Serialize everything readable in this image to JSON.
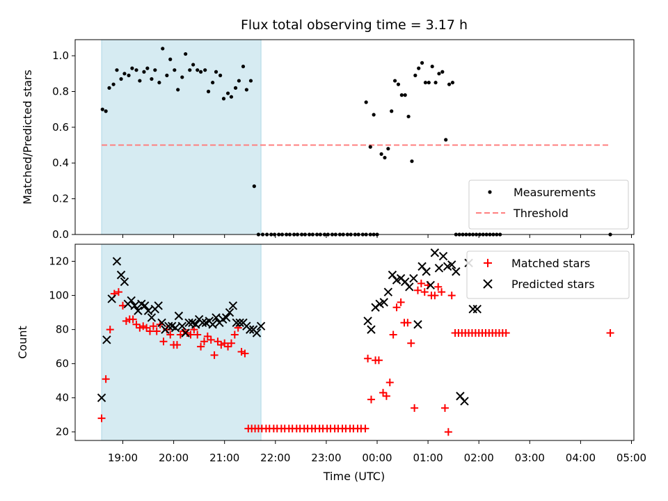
{
  "chart_data": {
    "type": "scatter",
    "title": "Flux total observing time = 3.17 h",
    "x_ticks": [
      "19:00",
      "20:00",
      "21:00",
      "22:00",
      "23:00",
      "00:00",
      "01:00",
      "02:00",
      "03:00",
      "04:00",
      "05:00"
    ],
    "xlabel": "Time (UTC)",
    "shaded_interval": [
      "18:35",
      "21:43"
    ],
    "panels": [
      {
        "ylabel": "Matched/Predicted stars",
        "ylim": [
          0,
          1.09
        ],
        "y_ticks": [
          "0.0",
          "0.2",
          "0.4",
          "0.6",
          "0.8",
          "1.0"
        ],
        "threshold": 0.5,
        "legend_position": "lower right",
        "legend": [
          "Measurements",
          "Threshold"
        ],
        "series": [
          {
            "name": "Measurements",
            "marker": "dot",
            "color": "#000000",
            "x": [
              "18:36",
              "18:40",
              "18:44",
              "18:49",
              "18:53",
              "18:58",
              "19:02",
              "19:07",
              "19:11",
              "19:16",
              "19:20",
              "19:25",
              "19:29",
              "19:34",
              "19:38",
              "19:43",
              "19:47",
              "19:52",
              "19:56",
              "20:01",
              "20:05",
              "20:10",
              "20:14",
              "20:19",
              "20:23",
              "20:28",
              "20:32",
              "20:37",
              "20:41",
              "20:46",
              "20:50",
              "20:55",
              "20:59",
              "21:04",
              "21:08",
              "21:13",
              "21:17",
              "21:22",
              "21:26",
              "21:31",
              "21:35",
              "21:40",
              "21:45",
              "21:50",
              "21:55",
              "21:59",
              "22:04",
              "22:08",
              "22:13",
              "22:17",
              "22:22",
              "22:26",
              "22:31",
              "22:35",
              "22:40",
              "22:44",
              "22:49",
              "22:53",
              "22:58",
              "23:02",
              "23:07",
              "23:11",
              "23:16",
              "23:20",
              "23:25",
              "23:29",
              "23:34",
              "23:38",
              "23:43",
              "23:47",
              "23:52",
              "23:56",
              "23:47",
              "23:52",
              "23:56",
              "00:00",
              "00:05",
              "00:09",
              "00:13",
              "00:17",
              "00:21",
              "00:25",
              "00:29",
              "00:33",
              "00:37",
              "00:41",
              "00:45",
              "00:49",
              "00:53",
              "00:57",
              "01:01",
              "01:05",
              "01:09",
              "01:13",
              "01:17",
              "01:21",
              "01:25",
              "01:29",
              "01:33",
              "01:37",
              "01:41",
              "01:45",
              "01:49",
              "01:53",
              "01:57",
              "02:01",
              "02:05",
              "02:09",
              "02:13",
              "02:17",
              "02:21",
              "02:25",
              "04:35"
            ],
            "y": [
              0.7,
              0.69,
              0.82,
              0.84,
              0.92,
              0.87,
              0.9,
              0.89,
              0.93,
              0.92,
              0.86,
              0.91,
              0.93,
              0.87,
              0.92,
              0.85,
              1.04,
              0.89,
              0.98,
              0.92,
              0.81,
              0.88,
              1.01,
              0.92,
              0.95,
              0.92,
              0.91,
              0.92,
              0.8,
              0.85,
              0.91,
              0.89,
              0.76,
              0.79,
              0.77,
              0.82,
              0.86,
              0.94,
              0.81,
              0.86,
              0.27,
              0.0,
              0.0,
              0.0,
              0.0,
              0.0,
              0.0,
              0.0,
              0.0,
              0.0,
              0.0,
              0.0,
              0.0,
              0.0,
              0.0,
              0.0,
              0.0,
              0.0,
              0.0,
              0.0,
              0.0,
              0.0,
              0.0,
              0.0,
              0.0,
              0.0,
              0.0,
              0.0,
              0.0,
              0.0,
              0.0,
              0.0,
              0.74,
              0.49,
              0.67,
              0.0,
              0.45,
              0.43,
              0.48,
              0.69,
              0.86,
              0.84,
              0.78,
              0.78,
              0.66,
              0.41,
              0.89,
              0.93,
              0.96,
              0.85,
              0.85,
              0.94,
              0.85,
              0.9,
              0.91,
              0.53,
              0.84,
              0.85,
              0.0,
              0.0,
              0.0,
              0.0,
              0.0,
              0.0,
              0.0,
              0.0,
              0.0,
              0.0,
              0.0,
              0.0,
              0.0,
              0.0,
              0.0
            ]
          }
        ]
      },
      {
        "ylabel": "Count",
        "ylim": [
          15,
          130
        ],
        "y_ticks": [
          "20",
          "40",
          "60",
          "80",
          "100",
          "120"
        ],
        "legend_position": "upper right",
        "legend": [
          "Matched stars",
          "Predicted stars"
        ],
        "series": [
          {
            "name": "Matched stars",
            "marker": "plus",
            "color": "#ff0000",
            "x": [
              "18:35",
              "18:40",
              "18:45",
              "18:50",
              "18:55",
              "19:00",
              "19:04",
              "19:08",
              "19:12",
              "19:16",
              "19:20",
              "19:24",
              "19:28",
              "19:32",
              "19:36",
              "19:40",
              "19:44",
              "19:48",
              "19:52",
              "19:56",
              "20:00",
              "20:04",
              "20:08",
              "20:12",
              "20:16",
              "20:20",
              "20:24",
              "20:28",
              "20:32",
              "20:36",
              "20:40",
              "20:44",
              "20:48",
              "20:52",
              "20:56",
              "21:00",
              "21:04",
              "21:08",
              "21:12",
              "21:16",
              "21:20",
              "21:24",
              "21:28",
              "21:32",
              "21:36",
              "21:40",
              "21:44",
              "21:49",
              "21:53",
              "21:58",
              "22:02",
              "22:07",
              "22:11",
              "22:16",
              "22:20",
              "22:25",
              "22:29",
              "22:34",
              "22:38",
              "22:43",
              "22:47",
              "22:52",
              "22:56",
              "23:01",
              "23:05",
              "23:10",
              "23:14",
              "23:19",
              "23:23",
              "23:28",
              "23:32",
              "23:37",
              "23:41",
              "23:46",
              "23:49",
              "23:53",
              "23:58",
              "00:02",
              "00:07",
              "00:11",
              "00:15",
              "00:19",
              "00:23",
              "00:28",
              "00:32",
              "00:36",
              "00:40",
              "00:44",
              "00:48",
              "00:52",
              "00:56",
              "01:00",
              "01:04",
              "01:08",
              "01:12",
              "01:16",
              "01:20",
              "01:24",
              "01:28",
              "01:32",
              "01:36",
              "01:40",
              "01:44",
              "01:48",
              "01:52",
              "01:56",
              "02:00",
              "02:04",
              "02:08",
              "02:12",
              "02:16",
              "02:20",
              "02:24",
              "02:28",
              "02:32",
              "04:35"
            ],
            "y": [
              28,
              51,
              80,
              101,
              102,
              94,
              85,
              86,
              86,
              83,
              81,
              82,
              81,
              79,
              82,
              79,
              83,
              73,
              80,
              77,
              71,
              71,
              77,
              79,
              78,
              77,
              80,
              77,
              70,
              73,
              76,
              74,
              65,
              73,
              71,
              72,
              70,
              72,
              77,
              81,
              67,
              66,
              22,
              22,
              22,
              22,
              22,
              22,
              22,
              22,
              22,
              22,
              22,
              22,
              22,
              22,
              22,
              22,
              22,
              22,
              22,
              22,
              22,
              22,
              22,
              22,
              22,
              22,
              22,
              22,
              22,
              22,
              22,
              22,
              63,
              39,
              62,
              62,
              43,
              41,
              49,
              77,
              93,
              96,
              84,
              84,
              72,
              34,
              103,
              107,
              102,
              106,
              100,
              100,
              105,
              102,
              34,
              20,
              100,
              78,
              78,
              78,
              78,
              78,
              78,
              78,
              78,
              78,
              78,
              78,
              78,
              78,
              78,
              78,
              78,
              78
            ]
          },
          {
            "name": "Predicted stars",
            "marker": "x",
            "color": "#000000",
            "x": [
              "18:35",
              "18:41",
              "18:47",
              "18:53",
              "18:58",
              "19:02",
              "19:06",
              "19:10",
              "19:14",
              "19:18",
              "19:22",
              "19:26",
              "19:30",
              "19:34",
              "19:38",
              "19:42",
              "19:46",
              "19:50",
              "19:54",
              "19:58",
              "20:02",
              "20:06",
              "20:10",
              "20:14",
              "20:18",
              "20:22",
              "20:26",
              "20:30",
              "20:34",
              "20:38",
              "20:42",
              "20:46",
              "20:50",
              "20:54",
              "20:58",
              "21:02",
              "21:06",
              "21:10",
              "21:14",
              "21:18",
              "21:22",
              "21:26",
              "21:30",
              "21:34",
              "21:38",
              "21:43",
              "23:49",
              "23:53",
              "23:58",
              "00:03",
              "00:08",
              "00:13",
              "00:18",
              "00:23",
              "00:28",
              "00:33",
              "00:38",
              "00:43",
              "00:48",
              "00:53",
              "00:58",
              "01:03",
              "01:08",
              "01:13",
              "01:18",
              "01:23",
              "01:28",
              "01:33",
              "01:38",
              "01:43",
              "01:48",
              "01:53",
              "01:58"
            ],
            "y": [
              40,
              74,
              98,
              120,
              112,
              108,
              95,
              97,
              94,
              91,
              95,
              94,
              91,
              87,
              92,
              94,
              84,
              80,
              82,
              82,
              81,
              88,
              82,
              78,
              84,
              84,
              83,
              86,
              84,
              84,
              85,
              83,
              87,
              84,
              86,
              87,
              90,
              94,
              84,
              84,
              84,
              82,
              80,
              80,
              78,
              82,
              85,
              80,
              93,
              95,
              96,
              102,
              112,
              109,
              110,
              108,
              105,
              110,
              83,
              117,
              114,
              106,
              125,
              116,
              123,
              117,
              118,
              114,
              41,
              38,
              119,
              92,
              92
            ]
          }
        ]
      }
    ]
  }
}
